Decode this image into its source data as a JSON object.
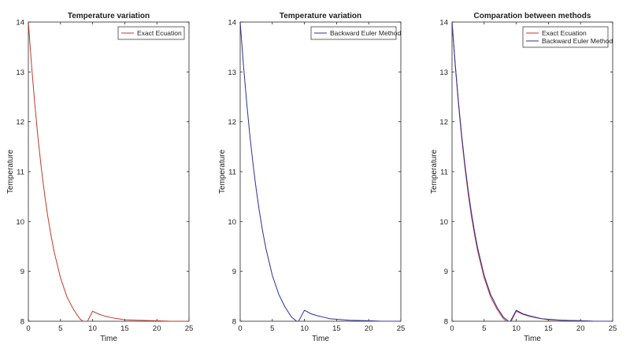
{
  "chart_data": [
    {
      "type": "line",
      "title": "Temperature variation",
      "xlabel": "Time",
      "ylabel": "Temperature",
      "xlim": [
        0,
        25
      ],
      "ylim": [
        8,
        14
      ],
      "x_ticks": [
        0,
        5,
        10,
        15,
        20,
        25
      ],
      "y_ticks": [
        8,
        9,
        10,
        11,
        12,
        13,
        14
      ],
      "grid": false,
      "legend": "top-right",
      "series": [
        {
          "name": "Exact Ecuation",
          "color": "#c0392b",
          "x": [
            0,
            0.5,
            1,
            1.5,
            2,
            2.5,
            3,
            3.5,
            4,
            5,
            6,
            7,
            8,
            9,
            10,
            11,
            12,
            13,
            14,
            15,
            17,
            20,
            22,
            25
          ],
          "y": [
            14.0,
            13.13,
            12.36,
            11.68,
            11.09,
            10.57,
            10.12,
            9.74,
            9.4,
            8.87,
            8.49,
            8.24,
            8.05,
            7.95,
            8.2,
            8.14,
            8.1,
            8.07,
            8.05,
            8.03,
            8.02,
            8.01,
            8.0,
            8.0
          ]
        }
      ]
    },
    {
      "type": "line",
      "title": "Temperature variation",
      "xlabel": "Time",
      "ylabel": "Temperature",
      "xlim": [
        0,
        25
      ],
      "ylim": [
        8,
        14
      ],
      "x_ticks": [
        0,
        5,
        10,
        15,
        20,
        25
      ],
      "y_ticks": [
        8,
        9,
        10,
        11,
        12,
        13,
        14
      ],
      "grid": false,
      "legend": "top-right",
      "series": [
        {
          "name": "Backward Euler Method",
          "color": "#2c2f9e",
          "x": [
            0,
            0.5,
            1,
            1.5,
            2,
            2.5,
            3,
            3.5,
            4,
            5,
            6,
            7,
            8,
            9,
            10,
            11,
            12,
            13,
            14,
            15,
            17,
            20,
            22,
            25
          ],
          "y": [
            14.0,
            13.15,
            12.4,
            11.73,
            11.15,
            10.64,
            10.19,
            9.8,
            9.46,
            8.92,
            8.54,
            8.28,
            8.08,
            7.98,
            8.22,
            8.15,
            8.11,
            8.08,
            8.05,
            8.04,
            8.02,
            8.01,
            8.0,
            8.0
          ]
        }
      ]
    },
    {
      "type": "line",
      "title": "Comparation between methods",
      "xlabel": "Time",
      "ylabel": "Temperature",
      "xlim": [
        0,
        25
      ],
      "ylim": [
        8,
        14
      ],
      "x_ticks": [
        0,
        5,
        10,
        15,
        20,
        25
      ],
      "y_ticks": [
        8,
        9,
        10,
        11,
        12,
        13,
        14
      ],
      "grid": false,
      "legend": "top-right",
      "series": [
        {
          "name": "Exact Ecuation",
          "color": "#c0392b",
          "x": [
            0,
            0.5,
            1,
            1.5,
            2,
            2.5,
            3,
            3.5,
            4,
            5,
            6,
            7,
            8,
            9,
            10,
            11,
            12,
            13,
            14,
            15,
            17,
            20,
            22,
            25
          ],
          "y": [
            14.0,
            13.13,
            12.36,
            11.68,
            11.09,
            10.57,
            10.12,
            9.74,
            9.4,
            8.87,
            8.49,
            8.24,
            8.05,
            7.95,
            8.2,
            8.14,
            8.1,
            8.07,
            8.05,
            8.03,
            8.02,
            8.01,
            8.0,
            8.0
          ]
        },
        {
          "name": "Backward Euler Method",
          "color": "#2c2f9e",
          "x": [
            0,
            0.5,
            1,
            1.5,
            2,
            2.5,
            3,
            3.5,
            4,
            5,
            6,
            7,
            8,
            9,
            10,
            11,
            12,
            13,
            14,
            15,
            17,
            20,
            22,
            25
          ],
          "y": [
            14.0,
            13.15,
            12.4,
            11.73,
            11.15,
            10.64,
            10.19,
            9.8,
            9.46,
            8.92,
            8.54,
            8.28,
            8.08,
            7.98,
            8.22,
            8.15,
            8.11,
            8.08,
            8.05,
            8.04,
            8.02,
            8.01,
            8.0,
            8.0
          ]
        }
      ]
    }
  ]
}
